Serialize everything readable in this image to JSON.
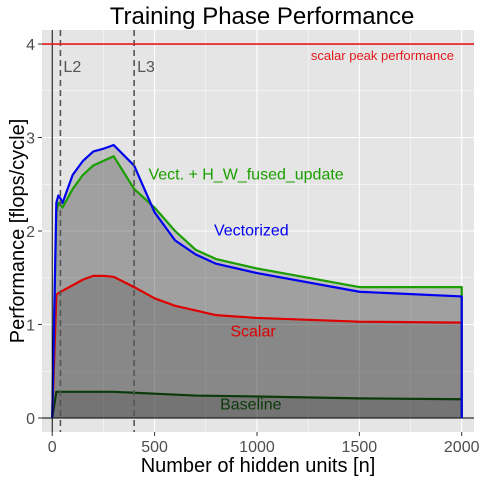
{
  "chart_data": {
    "type": "area",
    "title": "Training Phase Performance",
    "xlabel": "Number of hidden units [n]",
    "ylabel": "Performance [flops/cycle]",
    "xlim": [
      -50,
      2060
    ],
    "ylim": [
      -0.15,
      4.15
    ],
    "x_ticks": [
      0,
      500,
      1000,
      1500,
      2000
    ],
    "y_ticks": [
      0,
      1,
      2,
      3,
      4
    ],
    "grid": true,
    "legend": "none",
    "colors": {
      "panel_bg": "#e5e5e5",
      "grid": "#ffffff",
      "peak": "#e31a1c",
      "vect_fused": "#1a9e00",
      "vectorized": "#0000ee",
      "scalar": "#dd0000",
      "baseline": "#0a3a0a",
      "cache_lines": "#555555"
    },
    "peak_line": {
      "y": 4,
      "label": "scalar peak performance"
    },
    "cache_lines": [
      {
        "x": 40,
        "label": "L2"
      },
      {
        "x": 400,
        "label": "L3"
      }
    ],
    "series": [
      {
        "name": "Vectorized",
        "color": "#0000ee",
        "x": [
          0,
          20,
          30,
          40,
          50,
          100,
          150,
          200,
          250,
          300,
          400,
          500,
          600,
          700,
          800,
          1000,
          1500,
          2000
        ],
        "y": [
          0,
          2.3,
          2.38,
          2.35,
          2.3,
          2.6,
          2.75,
          2.85,
          2.88,
          2.92,
          2.7,
          2.2,
          1.9,
          1.75,
          1.65,
          1.55,
          1.35,
          1.3
        ]
      },
      {
        "name": "Vect. + H_W_fused_update",
        "color": "#1a9e00",
        "x": [
          0,
          20,
          30,
          40,
          50,
          100,
          150,
          200,
          250,
          300,
          400,
          500,
          600,
          700,
          800,
          1000,
          1500,
          2000
        ],
        "y": [
          0,
          2.2,
          2.3,
          2.28,
          2.25,
          2.45,
          2.6,
          2.7,
          2.75,
          2.8,
          2.45,
          2.25,
          2.0,
          1.8,
          1.7,
          1.6,
          1.4,
          1.4
        ]
      },
      {
        "name": "Scalar",
        "color": "#dd0000",
        "x": [
          0,
          20,
          50,
          100,
          150,
          200,
          250,
          300,
          400,
          500,
          600,
          700,
          800,
          1000,
          1500,
          2000
        ],
        "y": [
          0,
          1.32,
          1.36,
          1.42,
          1.48,
          1.52,
          1.52,
          1.51,
          1.4,
          1.28,
          1.2,
          1.15,
          1.1,
          1.07,
          1.03,
          1.02
        ]
      },
      {
        "name": "Baseline",
        "color": "#0a3a0a",
        "x": [
          0,
          20,
          100,
          200,
          300,
          400,
          500,
          700,
          1000,
          1500,
          2000
        ],
        "y": [
          0,
          0.28,
          0.28,
          0.28,
          0.28,
          0.27,
          0.26,
          0.24,
          0.23,
          0.21,
          0.2
        ]
      }
    ],
    "annotations": [
      {
        "text": "Vect. + H_W_fused_update",
        "x": 470,
        "y": 2.55,
        "color": "#1a9e00"
      },
      {
        "text": "Vectorized",
        "x": 790,
        "y": 1.95,
        "color": "#0000ee"
      },
      {
        "text": "Scalar",
        "x": 870,
        "y": 0.87,
        "color": "#dd0000"
      },
      {
        "text": "Baseline",
        "x": 820,
        "y": 0.09,
        "color": "#0a3a0a"
      }
    ]
  }
}
